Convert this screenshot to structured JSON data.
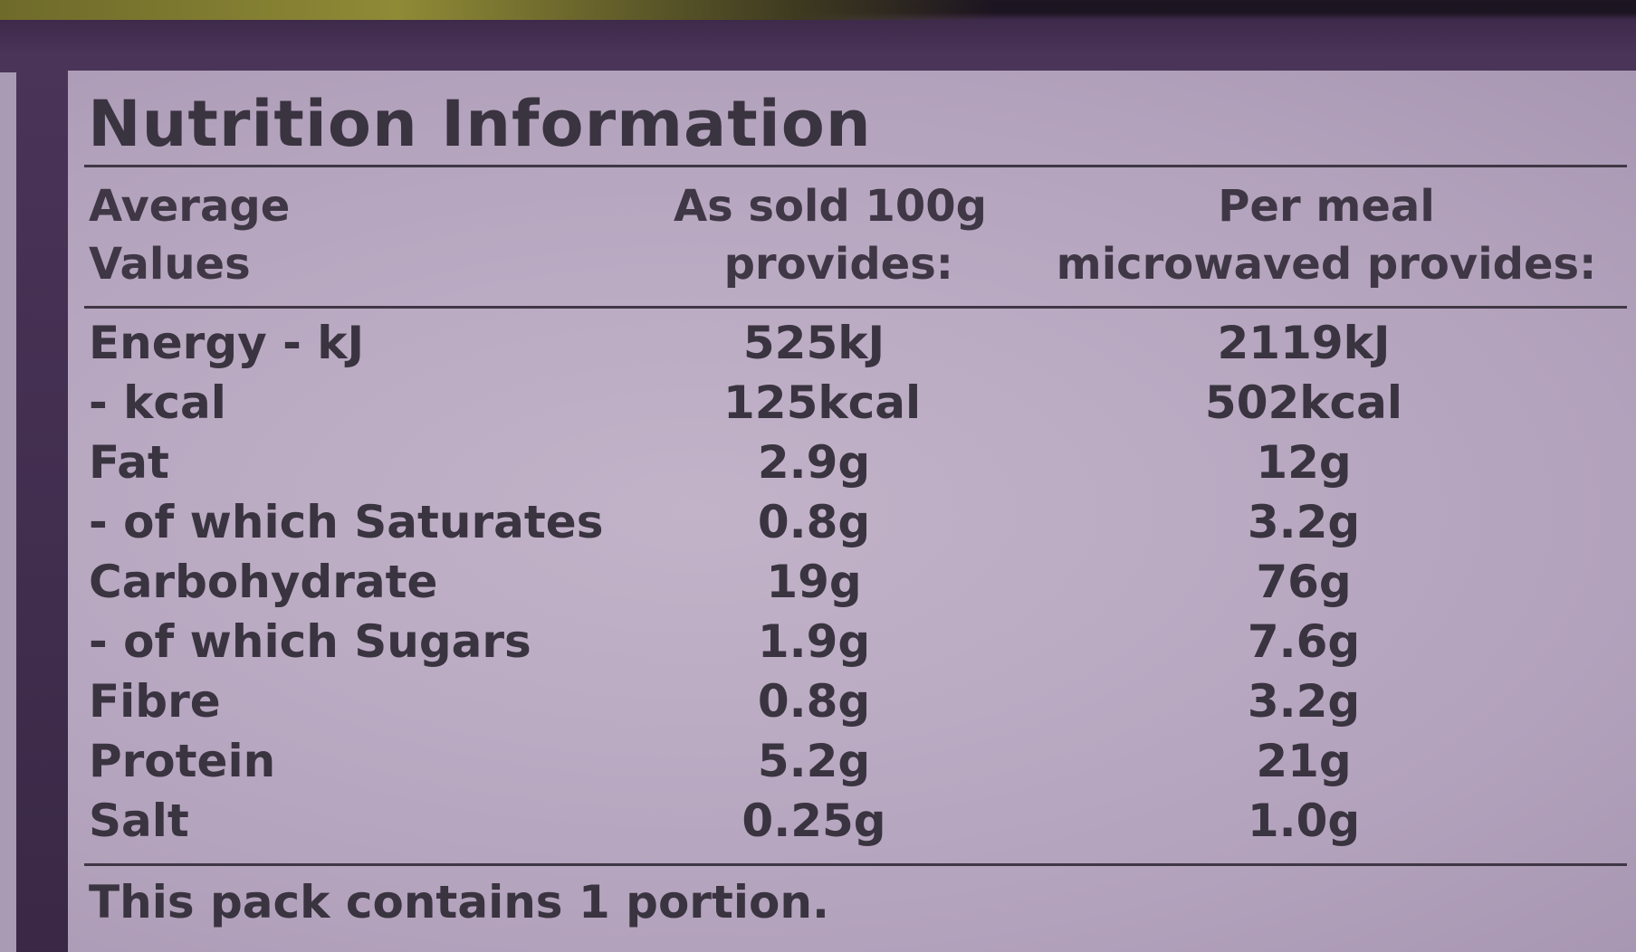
{
  "title": "Nutrition Information",
  "headers": {
    "col0": [
      "Average",
      "Values"
    ],
    "col1": [
      "As sold 100g",
      "provides:"
    ],
    "col2": [
      "Per meal",
      "microwaved provides:"
    ]
  },
  "rows": [
    {
      "label": "Energy - kJ",
      "per100g": "525kJ",
      "perMeal": "2119kJ"
    },
    {
      "label": "- kcal",
      "per100g": "125kcal",
      "perMeal": "502kcal"
    },
    {
      "label": "Fat",
      "per100g": "2.9g",
      "perMeal": "12g"
    },
    {
      "label": "- of which Saturates",
      "per100g": "0.8g",
      "perMeal": "3.2g"
    },
    {
      "label": "Carbohydrate",
      "per100g": "19g",
      "perMeal": "76g"
    },
    {
      "label": "- of which Sugars",
      "per100g": "1.9g",
      "perMeal": "7.6g"
    },
    {
      "label": "Fibre",
      "per100g": "0.8g",
      "perMeal": "3.2g"
    },
    {
      "label": "Protein",
      "per100g": "5.2g",
      "perMeal": "21g"
    },
    {
      "label": "Salt",
      "per100g": "0.25g",
      "perMeal": "1.0g"
    }
  ],
  "footer": "This pack contains 1 portion.",
  "colors": {
    "panel": "#b8a7bf",
    "text": "#3a3340",
    "border": "#3e2a4a"
  }
}
